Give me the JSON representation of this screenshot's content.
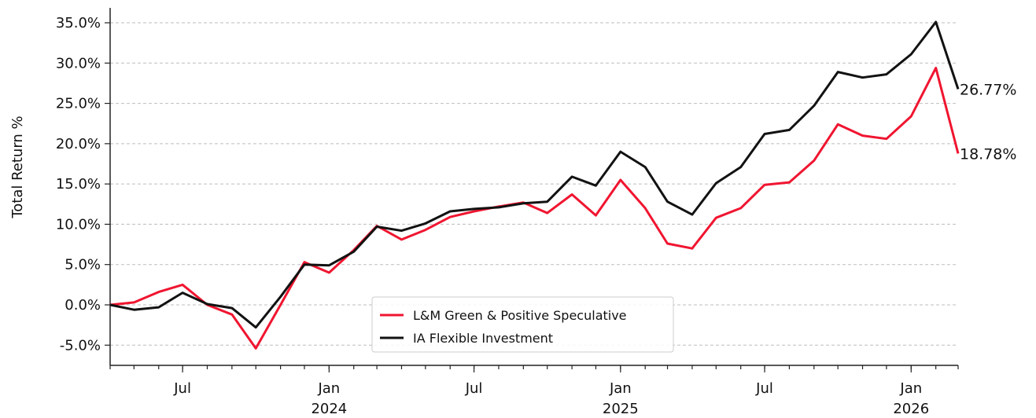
{
  "chart_data": {
    "type": "line",
    "ylabel": "Total Return %",
    "ylim": [
      -7.5,
      37.5
    ],
    "y_ticks": [
      -5,
      0,
      5,
      10,
      15,
      20,
      25,
      30,
      35
    ],
    "y_tick_labels": [
      "-5.0%",
      "0.0%",
      "5.0%",
      "10.0%",
      "15.0%",
      "20.0%",
      "25.0%",
      "30.0%",
      "35.0%"
    ],
    "xlim": [
      "2023-04-01",
      "2026-03-01"
    ],
    "x_tick_labels": [
      {
        "date": "2023-07-01",
        "label": "Jul",
        "year": ""
      },
      {
        "date": "2024-01-01",
        "label": "Jan",
        "year": "2024"
      },
      {
        "date": "2024-07-01",
        "label": "Jul",
        "year": ""
      },
      {
        "date": "2025-01-01",
        "label": "Jan",
        "year": "2025"
      },
      {
        "date": "2025-07-01",
        "label": "Jul",
        "year": ""
      },
      {
        "date": "2026-01-01",
        "label": "Jan",
        "year": "2026"
      }
    ],
    "grid": true,
    "legend_placement": "lower-center",
    "x": [
      "2023-04-01",
      "2023-05-01",
      "2023-06-01",
      "2023-07-01",
      "2023-08-01",
      "2023-09-01",
      "2023-10-01",
      "2023-11-01",
      "2023-12-01",
      "2024-01-01",
      "2024-02-01",
      "2024-03-01",
      "2024-04-01",
      "2024-05-01",
      "2024-06-01",
      "2024-07-01",
      "2024-08-01",
      "2024-09-01",
      "2024-10-01",
      "2024-11-01",
      "2024-12-01",
      "2025-01-01",
      "2025-02-01",
      "2025-03-01",
      "2025-04-01",
      "2025-05-01",
      "2025-06-01",
      "2025-07-01",
      "2025-08-01",
      "2025-09-01",
      "2025-10-01",
      "2025-11-01",
      "2025-12-01",
      "2026-01-01",
      "2026-02-01",
      "2026-03-01"
    ],
    "series": [
      {
        "name": "L&M Green & Positive Speculative",
        "color": "#f01530",
        "values": [
          0.0,
          0.3,
          1.6,
          2.5,
          0.0,
          -1.2,
          -5.4,
          0.0,
          5.3,
          4.0,
          6.8,
          9.8,
          8.1,
          9.3,
          10.9,
          11.6,
          12.2,
          12.7,
          11.4,
          13.7,
          11.1,
          15.5,
          12.0,
          7.6,
          7.0,
          10.8,
          12.0,
          14.9,
          15.2,
          17.9,
          22.4,
          21.0,
          20.6,
          23.4,
          29.4,
          18.78
        ],
        "end_label": "18.78%"
      },
      {
        "name": "IA Flexible Investment",
        "color": "#121212",
        "values": [
          0.0,
          -0.6,
          -0.3,
          1.5,
          0.1,
          -0.4,
          -2.8,
          1.0,
          5.0,
          4.9,
          6.6,
          9.7,
          9.2,
          10.1,
          11.6,
          11.9,
          12.1,
          12.6,
          12.8,
          15.9,
          14.8,
          19.0,
          17.1,
          12.8,
          11.2,
          15.1,
          17.1,
          21.2,
          21.7,
          24.7,
          28.9,
          28.2,
          28.6,
          31.1,
          35.1,
          26.77
        ],
        "end_label": "26.77%"
      }
    ]
  }
}
